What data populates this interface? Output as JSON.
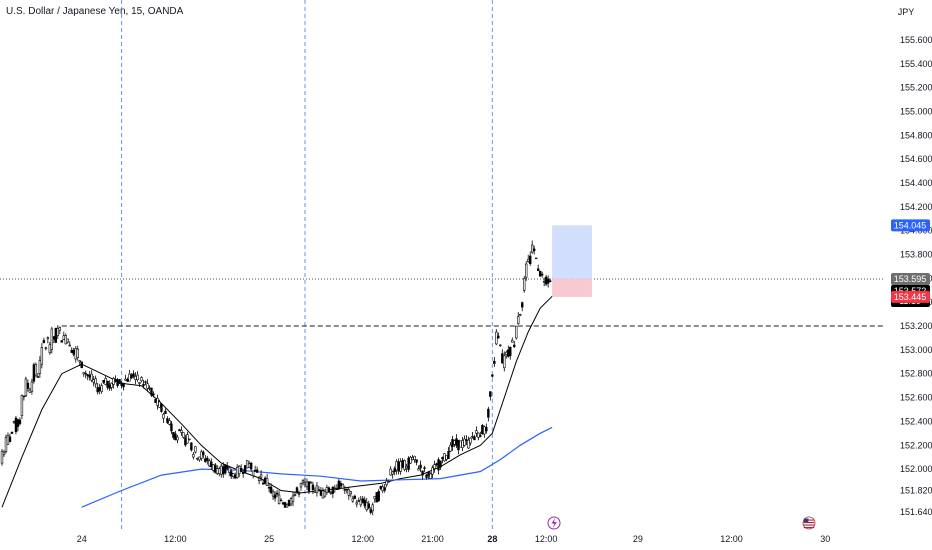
{
  "header": {
    "title": "U.S. Dollar / Japanese Yen, 15, OANDA",
    "currency": "JPY"
  },
  "price_labels": {
    "target": "154.045",
    "current": "153.595",
    "last": "153.572",
    "countdown": "11:19",
    "stop": "153.445"
  },
  "colors": {
    "background": "#ffffff",
    "candle": "#000000",
    "ma_fast": "#000000",
    "ma_slow": "#2962ff",
    "target_zone": "#c9d8fb",
    "stop_zone": "#f8c3cd",
    "target_label": "#2962ff",
    "current_label": "#6e6e6e",
    "last_label": "#000000",
    "stop_label": "#f23645",
    "session_line": "#2962ff"
  },
  "icons": [
    "lightning-event-icon",
    "us-flag-event-icon"
  ],
  "chart_data": {
    "type": "candlestick",
    "title": "U.S. Dollar / Japanese Yen, 15, OANDA",
    "y_unit": "JPY",
    "ylim": [
      151.55,
      155.75
    ],
    "y_ticks": [
      "155.600",
      "155.400",
      "155.200",
      "155.000",
      "154.800",
      "154.600",
      "154.400",
      "154.200",
      "154.000",
      "153.800",
      "153.600",
      "153.400",
      "153.200",
      "153.000",
      "152.800",
      "152.600",
      "152.400",
      "152.200",
      "152.000",
      "151.820",
      "151.640"
    ],
    "x_ticks": [
      "24",
      "12:00",
      "25",
      "12:00",
      "21:00",
      "28",
      "12:00",
      "29",
      "12:00",
      "30"
    ],
    "x_tick_index": [
      40,
      87,
      134,
      181,
      216,
      246,
      273,
      319,
      366,
      413
    ],
    "bold_x_ticks": [
      "28"
    ],
    "session_breaks_index": [
      60,
      152,
      246
    ],
    "resistance_level": 153.2,
    "resistance_start_index": 30,
    "current_price": 153.595,
    "position": {
      "entry": 153.595,
      "target": 154.045,
      "stop": 153.445,
      "start_index": 276,
      "end_index": 296
    },
    "candles": [
      {
        "i": 0,
        "o": 152.05,
        "c": 152.15
      },
      {
        "i": 10,
        "o": 152.45,
        "c": 152.62
      },
      {
        "i": 20,
        "o": 152.88,
        "c": 153.02
      },
      {
        "i": 28,
        "o": 153.12,
        "c": 153.18
      },
      {
        "i": 32,
        "o": 153.05,
        "c": 153.12
      },
      {
        "i": 40,
        "o": 152.9,
        "c": 152.85
      },
      {
        "i": 50,
        "o": 152.65,
        "c": 152.7
      },
      {
        "i": 58,
        "o": 152.75,
        "c": 152.7
      },
      {
        "i": 66,
        "o": 152.8,
        "c": 152.78
      },
      {
        "i": 75,
        "o": 152.68,
        "c": 152.62
      },
      {
        "i": 85,
        "o": 152.38,
        "c": 152.32
      },
      {
        "i": 95,
        "o": 152.22,
        "c": 152.16
      },
      {
        "i": 105,
        "o": 152.06,
        "c": 152.02
      },
      {
        "i": 115,
        "o": 151.98,
        "c": 151.94
      },
      {
        "i": 125,
        "o": 152.05,
        "c": 152.0
      },
      {
        "i": 135,
        "o": 151.85,
        "c": 151.8
      },
      {
        "i": 142,
        "o": 151.72,
        "c": 151.68
      },
      {
        "i": 150,
        "o": 151.85,
        "c": 151.88
      },
      {
        "i": 160,
        "o": 151.82,
        "c": 151.78
      },
      {
        "i": 170,
        "o": 151.88,
        "c": 151.86
      },
      {
        "i": 180,
        "o": 151.7,
        "c": 151.74
      },
      {
        "i": 186,
        "o": 151.65,
        "c": 151.7
      },
      {
        "i": 195,
        "o": 151.95,
        "c": 152.0
      },
      {
        "i": 205,
        "o": 152.05,
        "c": 152.1
      },
      {
        "i": 215,
        "o": 151.92,
        "c": 151.96
      },
      {
        "i": 225,
        "o": 152.15,
        "c": 152.2
      },
      {
        "i": 235,
        "o": 152.22,
        "c": 152.26
      },
      {
        "i": 243,
        "o": 152.35,
        "c": 152.32
      },
      {
        "i": 248,
        "o": 153.05,
        "c": 153.15
      },
      {
        "i": 252,
        "o": 152.85,
        "c": 152.95
      },
      {
        "i": 258,
        "o": 153.1,
        "c": 153.2
      },
      {
        "i": 262,
        "o": 153.5,
        "c": 153.6
      },
      {
        "i": 266,
        "o": 153.82,
        "c": 153.88
      },
      {
        "i": 270,
        "o": 153.66,
        "c": 153.62
      },
      {
        "i": 275,
        "o": 153.58,
        "c": 153.572
      }
    ],
    "series": [
      {
        "kind": "moving-average",
        "color": "#000000",
        "points": [
          {
            "i": 0,
            "v": 151.68
          },
          {
            "i": 10,
            "v": 152.1
          },
          {
            "i": 20,
            "v": 152.5
          },
          {
            "i": 30,
            "v": 152.8
          },
          {
            "i": 40,
            "v": 152.88
          },
          {
            "i": 50,
            "v": 152.8
          },
          {
            "i": 60,
            "v": 152.72
          },
          {
            "i": 70,
            "v": 152.7
          },
          {
            "i": 80,
            "v": 152.55
          },
          {
            "i": 90,
            "v": 152.38
          },
          {
            "i": 100,
            "v": 152.2
          },
          {
            "i": 110,
            "v": 152.05
          },
          {
            "i": 120,
            "v": 151.98
          },
          {
            "i": 130,
            "v": 151.92
          },
          {
            "i": 140,
            "v": 151.82
          },
          {
            "i": 150,
            "v": 151.8
          },
          {
            "i": 160,
            "v": 151.82
          },
          {
            "i": 170,
            "v": 151.84
          },
          {
            "i": 180,
            "v": 151.86
          },
          {
            "i": 190,
            "v": 151.88
          },
          {
            "i": 200,
            "v": 151.92
          },
          {
            "i": 210,
            "v": 151.95
          },
          {
            "i": 220,
            "v": 152.02
          },
          {
            "i": 230,
            "v": 152.12
          },
          {
            "i": 240,
            "v": 152.2
          },
          {
            "i": 246,
            "v": 152.3
          },
          {
            "i": 252,
            "v": 152.6
          },
          {
            "i": 258,
            "v": 152.9
          },
          {
            "i": 264,
            "v": 153.15
          },
          {
            "i": 270,
            "v": 153.35
          },
          {
            "i": 276,
            "v": 153.45
          }
        ]
      },
      {
        "kind": "moving-average",
        "color": "#2962ff",
        "points": [
          {
            "i": 40,
            "v": 151.68
          },
          {
            "i": 60,
            "v": 151.82
          },
          {
            "i": 80,
            "v": 151.95
          },
          {
            "i": 100,
            "v": 152.0
          },
          {
            "i": 120,
            "v": 151.99
          },
          {
            "i": 140,
            "v": 151.96
          },
          {
            "i": 160,
            "v": 151.94
          },
          {
            "i": 180,
            "v": 151.9
          },
          {
            "i": 200,
            "v": 151.91
          },
          {
            "i": 220,
            "v": 151.92
          },
          {
            "i": 240,
            "v": 151.98
          },
          {
            "i": 250,
            "v": 152.08
          },
          {
            "i": 260,
            "v": 152.2
          },
          {
            "i": 270,
            "v": 152.3
          },
          {
            "i": 276,
            "v": 152.35
          }
        ]
      }
    ]
  }
}
